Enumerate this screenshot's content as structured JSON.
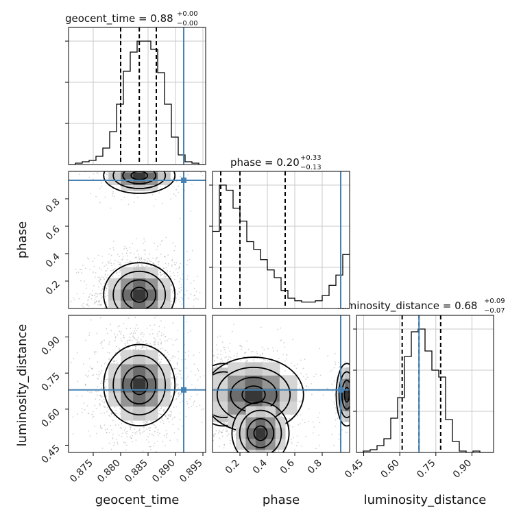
{
  "chart_data": {
    "type": "corner",
    "parameters": [
      "geocent_time",
      "phase",
      "luminosity_distance"
    ],
    "truth_color": "#4682b4",
    "truths": {
      "geocent_time": 0.8915,
      "phase": 0.935,
      "luminosity_distance": 0.68
    },
    "titles": {
      "geocent_time": {
        "name": "geocent_time",
        "value": "0.88",
        "plus": "+0.00",
        "minus": "−0.00"
      },
      "phase": {
        "name": "phase",
        "value": "0.20",
        "plus": "+0.33",
        "minus": "−0.13"
      },
      "luminosity_distance": {
        "name": "luminosity_distance",
        "value": "0.68",
        "plus": "+0.09",
        "minus": "−0.07"
      }
    },
    "ranges": {
      "geocent_time": [
        0.8705,
        0.8955
      ],
      "phase": [
        0.0,
        1.0
      ],
      "luminosity_distance": [
        0.42,
        0.99
      ]
    },
    "ticks": {
      "geocent_time": [
        "0.875",
        "0.880",
        "0.885",
        "0.890",
        "0.895"
      ],
      "phase": [
        "0.2",
        "0.4",
        "0.6",
        "0.8"
      ],
      "luminosity_distance": [
        "0.45",
        "0.60",
        "0.75",
        "0.90"
      ]
    },
    "quantiles": {
      "geocent_time": [
        0.88,
        0.8834,
        0.8865
      ],
      "phase": [
        0.06,
        0.2,
        0.53
      ],
      "luminosity_distance": [
        0.61,
        0.68,
        0.77
      ]
    },
    "hist_1d": {
      "geocent_time": {
        "edges_start": 0.8705,
        "bin": 0.00125,
        "counts": [
          0,
          1,
          2,
          3,
          6,
          12,
          24,
          44,
          68,
          82,
          90,
          90,
          84,
          67,
          44,
          20,
          7,
          2,
          1,
          0
        ]
      },
      "phase": {
        "edges_start": 0.0,
        "bin": 0.05,
        "counts": [
          60,
          96,
          92,
          78,
          68,
          52,
          46,
          38,
          30,
          24,
          14,
          8,
          6,
          5,
          5,
          6,
          10,
          18,
          26,
          42
        ]
      },
      "luminosity_distance": {
        "edges_start": 0.42,
        "bin": 0.0285,
        "counts": [
          0,
          1,
          2,
          5,
          10,
          25,
          40,
          70,
          88,
          90,
          74,
          60,
          55,
          24,
          8,
          1,
          0,
          1,
          0,
          0
        ]
      }
    },
    "grid": true
  }
}
